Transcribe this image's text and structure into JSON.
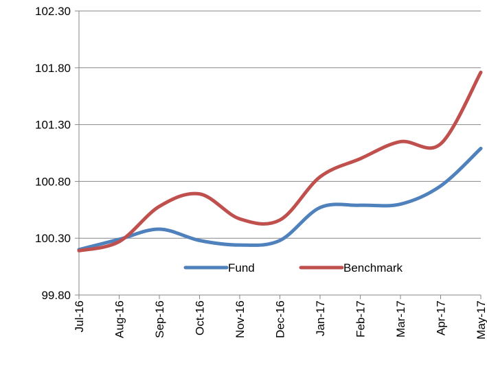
{
  "chart_data": {
    "type": "line",
    "categories": [
      "Jul-16",
      "Aug-16",
      "Sep-16",
      "Oct-16",
      "Nov-16",
      "Dec-16",
      "Jan-17",
      "Feb-17",
      "Mar-17",
      "Apr-17",
      "May-17"
    ],
    "series": [
      {
        "name": "Fund",
        "color": "#4f81bd",
        "values": [
          100.2,
          100.29,
          100.38,
          100.28,
          100.24,
          100.28,
          100.57,
          100.59,
          100.6,
          100.76,
          101.09
        ]
      },
      {
        "name": "Benchmark",
        "color": "#c0504d",
        "values": [
          100.19,
          100.27,
          100.58,
          100.69,
          100.47,
          100.46,
          100.84,
          101.0,
          101.15,
          101.13,
          101.76
        ]
      }
    ],
    "ylim": [
      99.8,
      102.3
    ],
    "yticks": [
      {
        "value": 99.8,
        "label": "99.80"
      },
      {
        "value": 100.3,
        "label": "100.30"
      },
      {
        "value": 100.8,
        "label": "100.80"
      },
      {
        "value": 101.3,
        "label": "101.30"
      },
      {
        "value": 101.8,
        "label": "101.80"
      },
      {
        "value": 102.3,
        "label": "102.30"
      }
    ],
    "grid": true,
    "legend": "bottom"
  }
}
